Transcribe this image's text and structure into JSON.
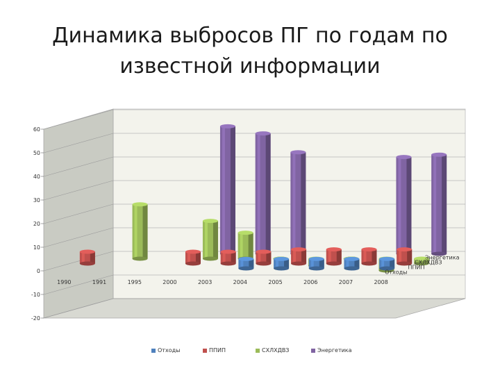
{
  "title": "Динамика выбросов ПГ по годам по известной информации",
  "chart_data": {
    "type": "bar",
    "title": "",
    "xlabel": "",
    "ylabel": "",
    "ylim": [
      -20,
      60
    ],
    "yticks": [
      -20,
      -10,
      0,
      10,
      20,
      30,
      40,
      50,
      60
    ],
    "categories": [
      "1990",
      "1991",
      "1995",
      "2000",
      "2003",
      "2004",
      "2005",
      "2006",
      "2007",
      "2008"
    ],
    "grid": true,
    "legend_position": "bottom",
    "series": [
      {
        "name": "Отходы",
        "color": "#4f81bd",
        "values": [
          null,
          null,
          null,
          null,
          null,
          4,
          4,
          4,
          4,
          4
        ]
      },
      {
        "name": "ППИП",
        "color": "#c0504d",
        "values": [
          5,
          null,
          null,
          5,
          5,
          5,
          6,
          6,
          6,
          6
        ]
      },
      {
        "name": "СХЛХДВЗ",
        "color": "#9bbb59",
        "values": [
          null,
          23,
          null,
          16,
          11,
          0,
          -3,
          0,
          -5,
          -2
        ]
      },
      {
        "name": "Энергетика",
        "color": "#8064a2",
        "values": [
          null,
          null,
          null,
          54,
          51,
          43,
          null,
          null,
          41,
          42
        ]
      }
    ],
    "depth_labels": [
      "Энергетика",
      "СХЛХДВЗ",
      "ППИП",
      "Отходы"
    ]
  }
}
